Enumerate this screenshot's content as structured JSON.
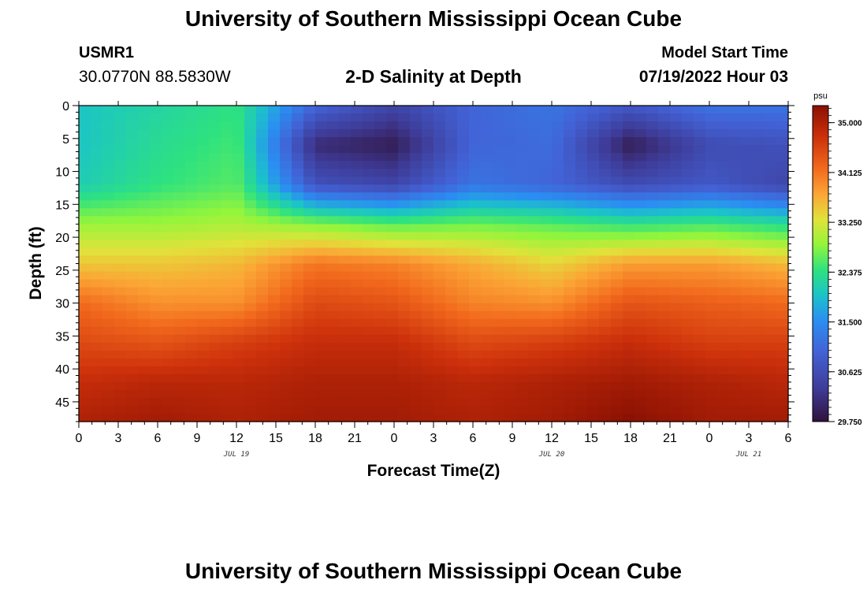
{
  "header": {
    "title": "University of Southern Mississippi Ocean Cube",
    "station": "USMR1",
    "coords": "30.0770N  88.5830W",
    "subtitle": "2-D Salinity at Depth",
    "model_start_label": "Model Start Time",
    "model_start_value": "07/19/2022 Hour 03"
  },
  "footer": {
    "title": "University of Southern Mississippi Ocean Cube"
  },
  "colors": {
    "axis": "#000000",
    "background": "#ffffff"
  },
  "chart_data": {
    "type": "heatmap",
    "xlabel": "Forecast Time(Z)",
    "ylabel": "Depth (ft)",
    "x_hours_range": [
      0,
      54
    ],
    "y_range": [
      0,
      48
    ],
    "x_tick_labels": [
      "0",
      "3",
      "6",
      "9",
      "12",
      "15",
      "18",
      "21",
      "0",
      "3",
      "6",
      "9",
      "12",
      "15",
      "18",
      "21",
      "0",
      "3",
      "6"
    ],
    "y_tick_values": [
      0,
      5,
      10,
      15,
      20,
      25,
      30,
      35,
      40,
      45
    ],
    "date_labels": [
      {
        "text": "JUL 19",
        "hour": 12
      },
      {
        "text": "JUL 20",
        "hour": 36
      },
      {
        "text": "JUL 21",
        "hour": 51
      }
    ],
    "colorbar": {
      "unit": "psu",
      "min": 29.75,
      "max": 35.3,
      "tick_labels": [
        "35.000",
        "34.125",
        "33.250",
        "32.375",
        "31.500",
        "30.625",
        "29.750"
      ],
      "tick_values": [
        35.0,
        34.125,
        33.25,
        32.375,
        31.5,
        30.625,
        29.75
      ]
    },
    "grid_hours": [
      0,
      6,
      12,
      18,
      24,
      30,
      36,
      42,
      48,
      54
    ],
    "grid_depths": [
      0,
      6,
      12,
      18,
      24,
      30,
      36,
      42,
      48
    ],
    "salinity": [
      [
        32.0,
        32.2,
        32.4,
        31.0,
        30.5,
        31.0,
        31.2,
        30.8,
        31.2,
        31.2
      ],
      [
        32.0,
        32.3,
        32.5,
        30.1,
        29.9,
        31.0,
        31.1,
        29.9,
        30.6,
        30.7
      ],
      [
        32.1,
        32.4,
        32.6,
        30.7,
        30.5,
        31.2,
        31.0,
        30.6,
        30.8,
        30.5
      ],
      [
        32.9,
        32.9,
        33.0,
        32.8,
        32.6,
        32.7,
        32.6,
        32.4,
        32.5,
        32.3
      ],
      [
        33.5,
        33.5,
        33.6,
        34.1,
        34.0,
        33.7,
        33.4,
        33.8,
        33.8,
        33.6
      ],
      [
        34.2,
        33.9,
        33.9,
        34.5,
        34.4,
        34.0,
        33.9,
        34.4,
        34.3,
        34.2
      ],
      [
        34.5,
        34.4,
        34.6,
        34.8,
        34.8,
        34.5,
        34.6,
        34.8,
        34.6,
        34.6
      ],
      [
        34.8,
        34.9,
        34.9,
        35.0,
        35.0,
        34.9,
        35.0,
        35.1,
        35.0,
        34.9
      ],
      [
        35.0,
        35.1,
        35.0,
        35.1,
        35.1,
        35.0,
        35.1,
        35.3,
        35.1,
        35.1
      ]
    ]
  }
}
